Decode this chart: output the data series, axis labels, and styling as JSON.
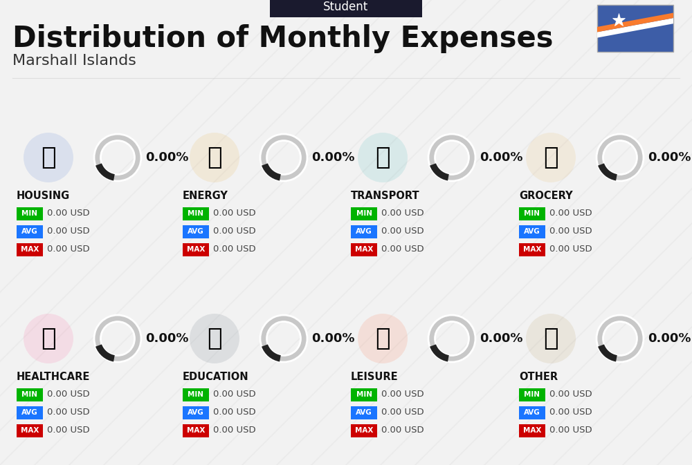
{
  "title": "Distribution of Monthly Expenses",
  "subtitle": "Marshall Islands",
  "header_label": "Student",
  "bg_color": "#f2f2f2",
  "header_bg": "#1a1a2e",
  "title_color": "#111111",
  "subtitle_color": "#333333",
  "categories": [
    "HOUSING",
    "ENERGY",
    "TRANSPORT",
    "GROCERY",
    "HEALTHCARE",
    "EDUCATION",
    "LEISURE",
    "OTHER"
  ],
  "percentages": [
    "0.00%",
    "0.00%",
    "0.00%",
    "0.00%",
    "0.00%",
    "0.00%",
    "0.00%",
    "0.00%"
  ],
  "min_values": [
    "0.00 USD",
    "0.00 USD",
    "0.00 USD",
    "0.00 USD",
    "0.00 USD",
    "0.00 USD",
    "0.00 USD",
    "0.00 USD"
  ],
  "avg_values": [
    "0.00 USD",
    "0.00 USD",
    "0.00 USD",
    "0.00 USD",
    "0.00 USD",
    "0.00 USD",
    "0.00 USD",
    "0.00 USD"
  ],
  "max_values": [
    "0.00 USD",
    "0.00 USD",
    "0.00 USD",
    "0.00 USD",
    "0.00 USD",
    "0.00 USD",
    "0.00 USD",
    "0.00 USD"
  ],
  "min_color": "#00b300",
  "avg_color": "#1a75ff",
  "max_color": "#cc0000",
  "value_text_color": "#444444",
  "category_text_color": "#111111",
  "pct_text_color": "#111111",
  "ring_bg_color": "#c8c8c8",
  "ring_dark_color": "#222222",
  "stripe_color": "#e8e8e8",
  "flag_blue": "#3D5DA7",
  "flag_orange": "#F97B2D",
  "flag_white": "#ffffff",
  "col_starts": [
    22,
    267,
    512,
    757
  ],
  "row_tops": [
    490,
    230
  ],
  "icon_emojis": [
    "🏗",
    "⚡",
    "🚌",
    "🛒",
    "💗",
    "🎓",
    "🛍",
    "💰"
  ],
  "icon_colors": [
    "#3060cc",
    "#ffaa00",
    "#00bbbb",
    "#ffaa44",
    "#ff5577",
    "#555577",
    "#ff4422",
    "#aa7733"
  ]
}
